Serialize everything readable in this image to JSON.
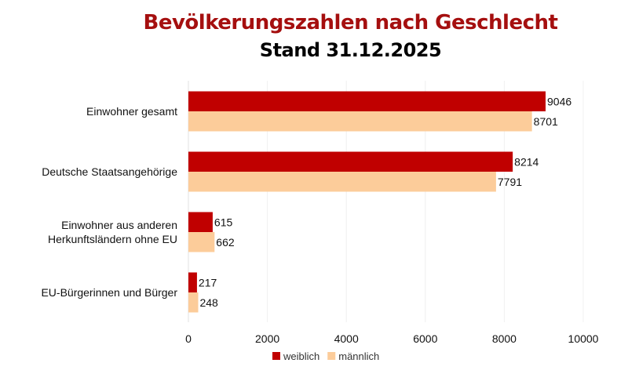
{
  "chart_data": {
    "type": "bar",
    "orientation": "horizontal",
    "title": "Bevölkerungszahlen nach Geschlecht",
    "subtitle": "Stand 31.12.2025",
    "categories": [
      [
        "Einwohner gesamt"
      ],
      [
        "Deutsche Staatsangehörige"
      ],
      [
        "Einwohner aus anderen",
        "Herkunftsländern ohne EU"
      ],
      [
        "EU-Bürgerinnen und Bürger"
      ]
    ],
    "series": [
      {
        "name": "weiblich",
        "color": "#c00000",
        "values": [
          9046,
          8214,
          615,
          217
        ]
      },
      {
        "name": "männlich",
        "color": "#fccc9a",
        "values": [
          8701,
          7791,
          662,
          248
        ]
      }
    ],
    "xlim": [
      0,
      10000
    ],
    "xticks": [
      0,
      2000,
      4000,
      6000,
      8000,
      10000
    ],
    "grid": true,
    "legend": "bottom",
    "data_labels": true
  }
}
